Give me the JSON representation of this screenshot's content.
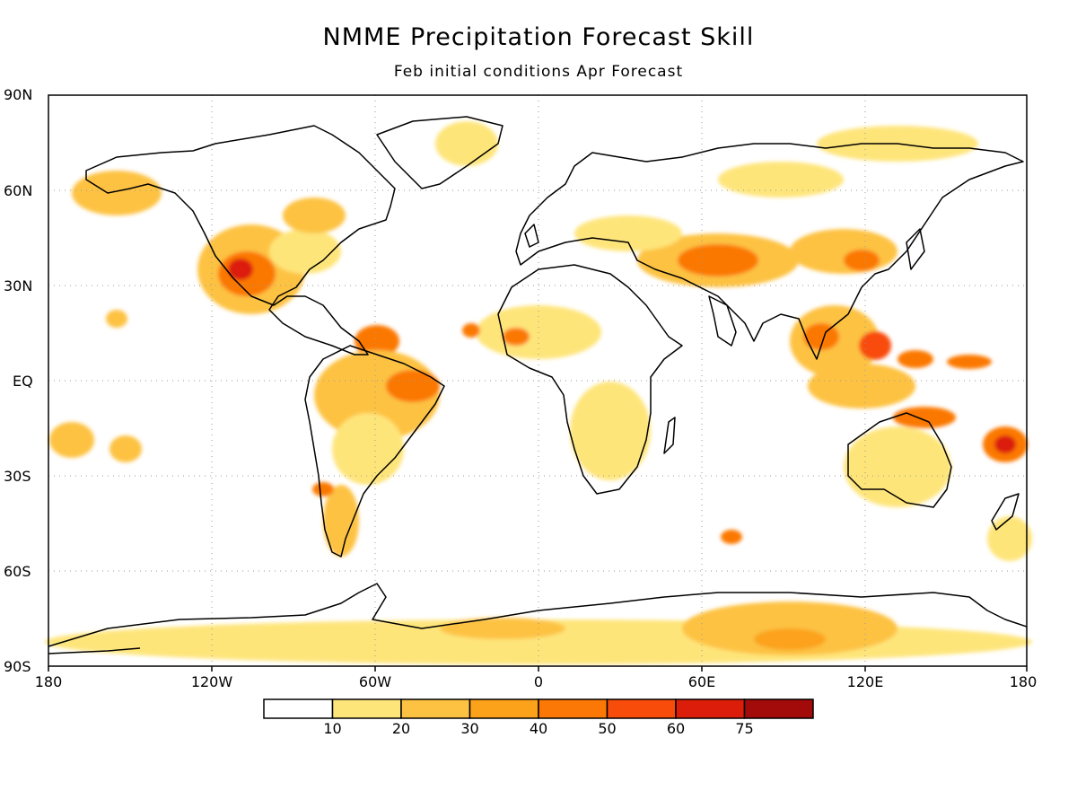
{
  "title": "NMME Precipitation Forecast Skill",
  "subtitle": "Feb initial conditions  Apr Forecast",
  "lat_labels": [
    "90N",
    "60N",
    "30N",
    "EQ",
    "30S",
    "60S",
    "90S"
  ],
  "lon_labels": [
    "180",
    "120W",
    "60W",
    "0",
    "60E",
    "120E",
    "180"
  ],
  "colorbar": {
    "levels": [
      "10",
      "20",
      "30",
      "40",
      "50",
      "60",
      "75"
    ],
    "colors": [
      "#ffffff",
      "#fee57a",
      "#fdc242",
      "#fca21a",
      "#fb7806",
      "#f84c0a",
      "#dc1d09",
      "#a30a0a"
    ]
  }
}
